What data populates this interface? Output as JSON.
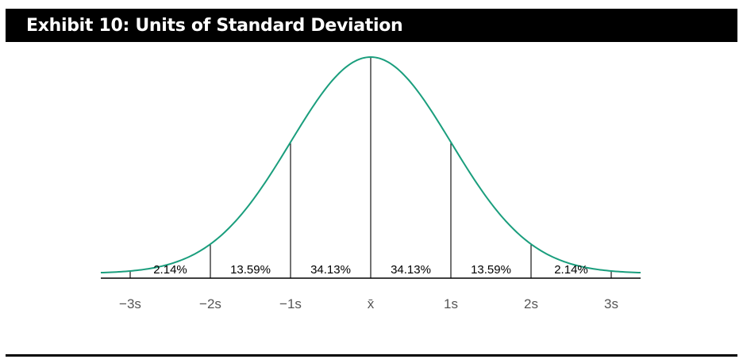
{
  "header": {
    "title": "Exhibit 10: Units of Standard Deviation"
  },
  "colors": {
    "curve": "#1a9e7d",
    "title_bg": "#000000",
    "title_text": "#ffffff",
    "axis": "#000000",
    "tick_label": "#555555",
    "segment_label": "#000000"
  },
  "chart_data": {
    "type": "area",
    "title": "Exhibit 10: Units of Standard Deviation",
    "xlabel": "",
    "ylabel": "",
    "xlim": [
      -3.4,
      3.4
    ],
    "grid": false,
    "legend": "none",
    "curve": "standard normal distribution",
    "x_ticks": [
      {
        "value": -3,
        "label": "−3s"
      },
      {
        "value": -2,
        "label": "−2s"
      },
      {
        "value": -1,
        "label": "−1s"
      },
      {
        "value": 0,
        "label": "x̄"
      },
      {
        "value": 1,
        "label": "1s"
      },
      {
        "value": 2,
        "label": "2s"
      },
      {
        "value": 3,
        "label": "3s"
      }
    ],
    "segments": [
      {
        "from": -3,
        "to": -2,
        "label": "2.14%"
      },
      {
        "from": -2,
        "to": -1,
        "label": "13.59%"
      },
      {
        "from": -1,
        "to": 0,
        "label": "34.13%"
      },
      {
        "from": 0,
        "to": 1,
        "label": "34.13%"
      },
      {
        "from": 1,
        "to": 2,
        "label": "13.59%"
      },
      {
        "from": 2,
        "to": 3,
        "label": "2.14%"
      }
    ]
  }
}
